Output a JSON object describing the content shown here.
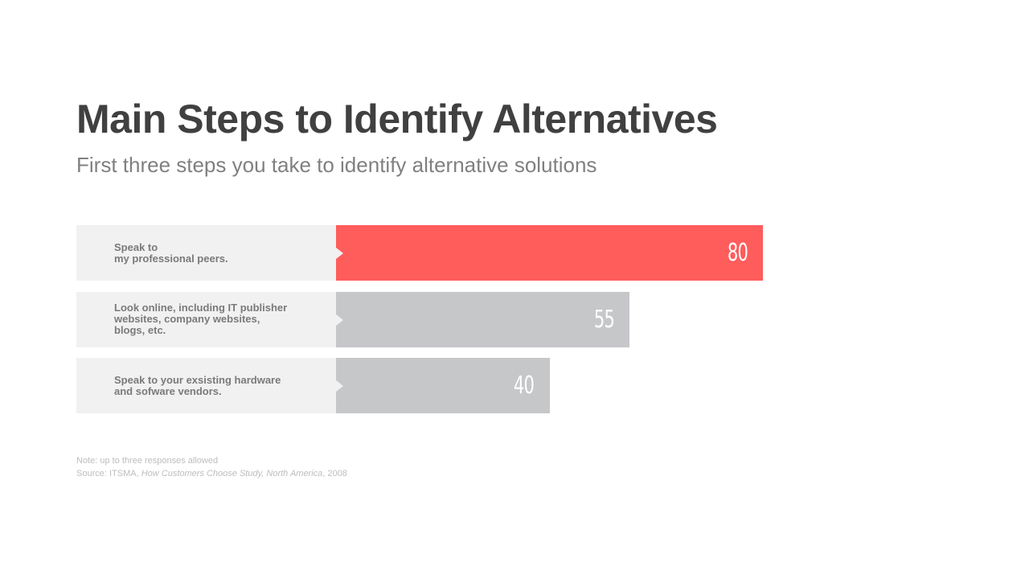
{
  "header": {
    "title": "Main Steps to Identify Alternatives",
    "subtitle": "First three steps you take to identify alternative solutions"
  },
  "colors": {
    "highlight": "#ff5c5c",
    "bar": "#c6c7c9",
    "label_bg": "#f1f1f1"
  },
  "chart_data": {
    "type": "bar",
    "orientation": "horizontal",
    "title": "Main Steps to Identify Alternatives",
    "subtitle": "First three steps you take to identify alternative solutions",
    "categories": [
      "Speak to\nmy professional peers.",
      "Look online, including IT publisher\nwebsites, company websites,\nblogs, etc.",
      "Speak to your exsisting hardware\nand sofware vendors."
    ],
    "values": [
      80,
      55,
      40
    ],
    "highlight_index": 0,
    "xlim": [
      0,
      100
    ],
    "grid": false
  },
  "notes": {
    "note": "Note: up to three responses allowed",
    "source_prefix": "Source: ITSMA, ",
    "source_title": "How Customers Choose Study, North America",
    "source_suffix": ", 2008"
  }
}
